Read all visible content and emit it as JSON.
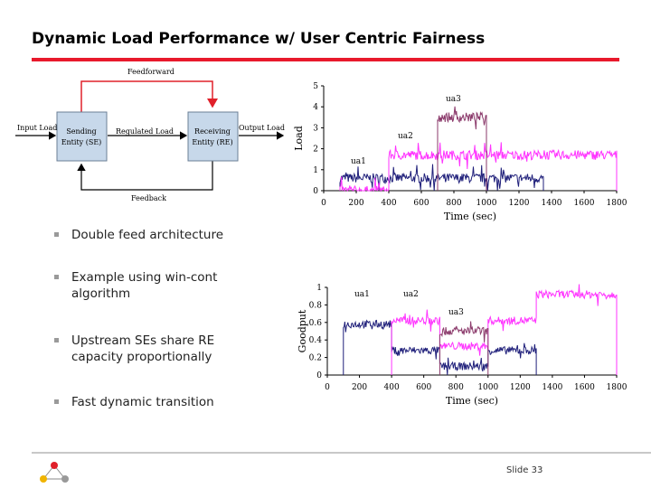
{
  "slide": {
    "title": "Dynamic Load Performance w/ User Centric Fairness",
    "bullets": [
      "Double feed architecture",
      "Example using win-cont algorithm",
      "Upstream SEs share RE capacity proportionally",
      "Fast dynamic transition"
    ],
    "slide_number": "Slide 33"
  },
  "diagram": {
    "feedforward": "Feedforward",
    "feedback": "Feedback",
    "input_load": "Input Load",
    "regulated_load": "Regulated Load",
    "output_load": "Output Load",
    "se_line1": "Sending",
    "se_line2": "Entity (SE)",
    "re_line1": "Receiving",
    "re_line2": "Entity (RE)"
  },
  "colors": {
    "accent_red": "#e8192c",
    "ua1": "#1f1f7a",
    "ua2": "#ff33ff",
    "ua3": "#8b3a6b",
    "box_fill": "#c7d8ea",
    "arrow": "#e0202a"
  },
  "chart_data": [
    {
      "type": "line",
      "ylabel": "Load",
      "xlabel": "Time (sec)",
      "xlim": [
        0,
        1800
      ],
      "ylim": [
        0,
        5
      ],
      "x_ticks": [
        0,
        200,
        400,
        600,
        800,
        1000,
        1200,
        1400,
        1600,
        1800
      ],
      "y_ticks": [
        0,
        1,
        2,
        3,
        4,
        5
      ],
      "series": [
        {
          "name": "ua1",
          "color": "#1f1f7a",
          "x": [
            100,
            1350
          ],
          "y": [
            0.6,
            0.6
          ]
        },
        {
          "name": "ua2",
          "color": "#ff33ff",
          "x": [
            100,
            400,
            400,
            1800
          ],
          "y": [
            0,
            0,
            1.7,
            1.7
          ]
        },
        {
          "name": "ua3",
          "color": "#8b3a6b",
          "x": [
            700,
            1000
          ],
          "y": [
            3.5,
            3.5
          ]
        }
      ]
    },
    {
      "type": "line",
      "ylabel": "Goodput",
      "xlabel": "Time (sec)",
      "xlim": [
        0,
        1800
      ],
      "ylim": [
        0,
        1
      ],
      "x_ticks": [
        0,
        200,
        400,
        600,
        800,
        1000,
        1200,
        1400,
        1600,
        1800
      ],
      "y_ticks": [
        0,
        0.2,
        0.4,
        0.6,
        0.8,
        1
      ],
      "series": [
        {
          "name": "ua1",
          "color": "#1f1f7a",
          "x": [
            100,
            400,
            400,
            700,
            700,
            1000,
            1000,
            1300
          ],
          "y": [
            0.58,
            0.58,
            0.28,
            0.28,
            0.1,
            0.1,
            0.28,
            0.28
          ]
        },
        {
          "name": "ua2",
          "color": "#ff33ff",
          "x": [
            400,
            700,
            700,
            1000,
            1000,
            1300,
            1300,
            1800
          ],
          "y": [
            0.62,
            0.62,
            0.33,
            0.33,
            0.62,
            0.62,
            0.92,
            0.92
          ]
        },
        {
          "name": "ua3",
          "color": "#8b3a6b",
          "x": [
            700,
            1000
          ],
          "y": [
            0.5,
            0.5
          ]
        }
      ]
    }
  ]
}
